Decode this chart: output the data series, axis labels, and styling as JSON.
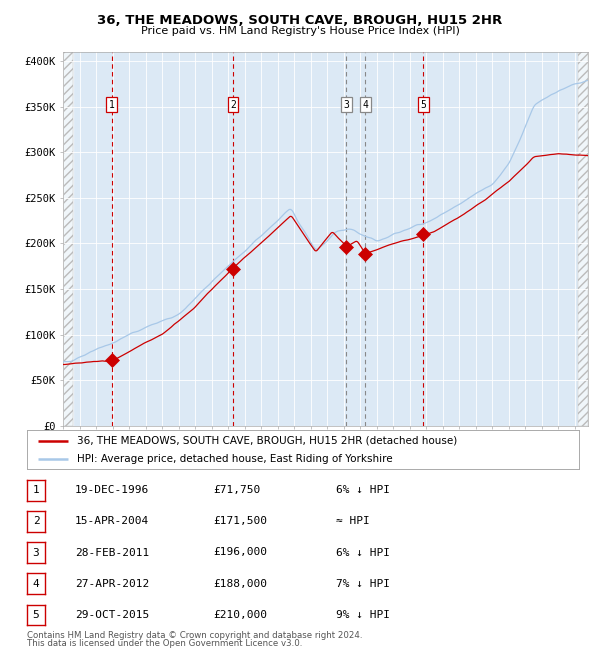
{
  "title1": "36, THE MEADOWS, SOUTH CAVE, BROUGH, HU15 2HR",
  "title2": "Price paid vs. HM Land Registry's House Price Index (HPI)",
  "plot_bg": "#dce9f5",
  "hpi_color": "#a8c8e8",
  "price_color": "#cc0000",
  "ylim": [
    0,
    410000
  ],
  "yticks": [
    0,
    50000,
    100000,
    150000,
    200000,
    250000,
    300000,
    350000,
    400000
  ],
  "ytick_labels": [
    "£0",
    "£50K",
    "£100K",
    "£150K",
    "£200K",
    "£250K",
    "£300K",
    "£350K",
    "£400K"
  ],
  "xlim_start": 1994.0,
  "xlim_end": 2025.8,
  "transactions": [
    {
      "num": 1,
      "date": "19-DEC-1996",
      "year": 1996.96,
      "price": 71750,
      "note": "6% ↓ HPI",
      "line_style": "red_dashed"
    },
    {
      "num": 2,
      "date": "15-APR-2004",
      "year": 2004.29,
      "price": 171500,
      "note": "≈ HPI",
      "line_style": "red_dashed"
    },
    {
      "num": 3,
      "date": "28-FEB-2011",
      "year": 2011.16,
      "price": 196000,
      "note": "6% ↓ HPI",
      "line_style": "gray_dashed"
    },
    {
      "num": 4,
      "date": "27-APR-2012",
      "year": 2012.32,
      "price": 188000,
      "note": "7% ↓ HPI",
      "line_style": "gray_dashed"
    },
    {
      "num": 5,
      "date": "29-OCT-2015",
      "year": 2015.83,
      "price": 210000,
      "note": "9% ↓ HPI",
      "line_style": "red_dashed"
    }
  ],
  "legend_line1": "36, THE MEADOWS, SOUTH CAVE, BROUGH, HU15 2HR (detached house)",
  "legend_line2": "HPI: Average price, detached house, East Riding of Yorkshire",
  "footer1": "Contains HM Land Registry data © Crown copyright and database right 2024.",
  "footer2": "This data is licensed under the Open Government Licence v3.0.",
  "table_rows": [
    {
      "num": 1,
      "date": "19-DEC-1996",
      "price": "£71,750",
      "note": "6% ↓ HPI"
    },
    {
      "num": 2,
      "date": "15-APR-2004",
      "price": "£171,500",
      "note": "≈ HPI"
    },
    {
      "num": 3,
      "date": "28-FEB-2011",
      "price": "£196,000",
      "note": "6% ↓ HPI"
    },
    {
      "num": 4,
      "date": "27-APR-2012",
      "price": "£188,000",
      "note": "7% ↓ HPI"
    },
    {
      "num": 5,
      "date": "29-OCT-2015",
      "price": "£210,000",
      "note": "9% ↓ HPI"
    }
  ]
}
